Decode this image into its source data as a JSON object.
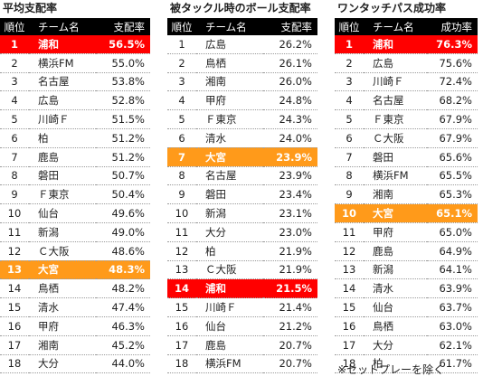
{
  "colors": {
    "highlight_red": "#ff0000",
    "highlight_orange": "#ff9a1a",
    "header_bg": "#000000"
  },
  "tables": [
    {
      "title": "平均支配率",
      "headers": {
        "rank": "順位",
        "team": "チーム名",
        "value": "支配率"
      },
      "rows": [
        {
          "rank": "1",
          "team": "浦和",
          "value": "56.5%",
          "hl": "red"
        },
        {
          "rank": "2",
          "team": "横浜FM",
          "value": "55.0%",
          "hl": ""
        },
        {
          "rank": "3",
          "team": "名古屋",
          "value": "53.8%",
          "hl": ""
        },
        {
          "rank": "4",
          "team": "広島",
          "value": "52.8%",
          "hl": ""
        },
        {
          "rank": "5",
          "team": "川崎Ｆ",
          "value": "51.5%",
          "hl": ""
        },
        {
          "rank": "6",
          "team": "柏",
          "value": "51.2%",
          "hl": ""
        },
        {
          "rank": "7",
          "team": "鹿島",
          "value": "51.2%",
          "hl": ""
        },
        {
          "rank": "8",
          "team": "磐田",
          "value": "50.7%",
          "hl": ""
        },
        {
          "rank": "9",
          "team": "Ｆ東京",
          "value": "50.4%",
          "hl": ""
        },
        {
          "rank": "10",
          "team": "仙台",
          "value": "49.6%",
          "hl": ""
        },
        {
          "rank": "11",
          "team": "新潟",
          "value": "49.0%",
          "hl": ""
        },
        {
          "rank": "12",
          "team": "Ｃ大阪",
          "value": "48.6%",
          "hl": ""
        },
        {
          "rank": "13",
          "team": "大宮",
          "value": "48.3%",
          "hl": "orange"
        },
        {
          "rank": "14",
          "team": "鳥栖",
          "value": "48.2%",
          "hl": ""
        },
        {
          "rank": "15",
          "team": "清水",
          "value": "47.4%",
          "hl": ""
        },
        {
          "rank": "16",
          "team": "甲府",
          "value": "46.3%",
          "hl": ""
        },
        {
          "rank": "17",
          "team": "湘南",
          "value": "45.2%",
          "hl": ""
        },
        {
          "rank": "18",
          "team": "大分",
          "value": "44.0%",
          "hl": ""
        }
      ]
    },
    {
      "title": "被タックル時のボール支配率",
      "headers": {
        "rank": "順位",
        "team": "チーム名",
        "value": "支配率"
      },
      "rows": [
        {
          "rank": "1",
          "team": "広島",
          "value": "26.2%",
          "hl": ""
        },
        {
          "rank": "2",
          "team": "鳥栖",
          "value": "26.1%",
          "hl": ""
        },
        {
          "rank": "3",
          "team": "湘南",
          "value": "26.0%",
          "hl": ""
        },
        {
          "rank": "4",
          "team": "甲府",
          "value": "24.8%",
          "hl": ""
        },
        {
          "rank": "5",
          "team": "Ｆ東京",
          "value": "24.3%",
          "hl": ""
        },
        {
          "rank": "6",
          "team": "清水",
          "value": "24.0%",
          "hl": ""
        },
        {
          "rank": "7",
          "team": "大宮",
          "value": "23.9%",
          "hl": "orange"
        },
        {
          "rank": "8",
          "team": "名古屋",
          "value": "23.9%",
          "hl": ""
        },
        {
          "rank": "9",
          "team": "磐田",
          "value": "23.4%",
          "hl": ""
        },
        {
          "rank": "10",
          "team": "新潟",
          "value": "23.1%",
          "hl": ""
        },
        {
          "rank": "11",
          "team": "大分",
          "value": "23.0%",
          "hl": ""
        },
        {
          "rank": "12",
          "team": "柏",
          "value": "21.9%",
          "hl": ""
        },
        {
          "rank": "13",
          "team": "Ｃ大阪",
          "value": "21.9%",
          "hl": ""
        },
        {
          "rank": "14",
          "team": "浦和",
          "value": "21.5%",
          "hl": "red"
        },
        {
          "rank": "15",
          "team": "川崎Ｆ",
          "value": "21.4%",
          "hl": ""
        },
        {
          "rank": "16",
          "team": "仙台",
          "value": "21.2%",
          "hl": ""
        },
        {
          "rank": "17",
          "team": "鹿島",
          "value": "20.7%",
          "hl": ""
        },
        {
          "rank": "18",
          "team": "横浜FM",
          "value": "20.7%",
          "hl": ""
        }
      ]
    },
    {
      "title": "ワンタッチパス成功率",
      "headers": {
        "rank": "順位",
        "team": "チーム名",
        "value": "成功率"
      },
      "rows": [
        {
          "rank": "1",
          "team": "浦和",
          "value": "76.3%",
          "hl": "red"
        },
        {
          "rank": "2",
          "team": "広島",
          "value": "75.6%",
          "hl": ""
        },
        {
          "rank": "3",
          "team": "川崎Ｆ",
          "value": "72.4%",
          "hl": ""
        },
        {
          "rank": "4",
          "team": "名古屋",
          "value": "68.2%",
          "hl": ""
        },
        {
          "rank": "5",
          "team": "Ｆ東京",
          "value": "67.9%",
          "hl": ""
        },
        {
          "rank": "6",
          "team": "Ｃ大阪",
          "value": "67.9%",
          "hl": ""
        },
        {
          "rank": "7",
          "team": "磐田",
          "value": "65.6%",
          "hl": ""
        },
        {
          "rank": "8",
          "team": "横浜FM",
          "value": "65.5%",
          "hl": ""
        },
        {
          "rank": "9",
          "team": "湘南",
          "value": "65.3%",
          "hl": ""
        },
        {
          "rank": "10",
          "team": "大宮",
          "value": "65.1%",
          "hl": "orange"
        },
        {
          "rank": "11",
          "team": "甲府",
          "value": "65.0%",
          "hl": ""
        },
        {
          "rank": "12",
          "team": "鹿島",
          "value": "64.9%",
          "hl": ""
        },
        {
          "rank": "13",
          "team": "新潟",
          "value": "64.1%",
          "hl": ""
        },
        {
          "rank": "14",
          "team": "清水",
          "value": "63.9%",
          "hl": ""
        },
        {
          "rank": "15",
          "team": "仙台",
          "value": "63.7%",
          "hl": ""
        },
        {
          "rank": "16",
          "team": "鳥栖",
          "value": "63.0%",
          "hl": ""
        },
        {
          "rank": "17",
          "team": "大分",
          "value": "62.1%",
          "hl": ""
        },
        {
          "rank": "18",
          "team": "柏",
          "value": "61.7%",
          "hl": ""
        }
      ]
    }
  ],
  "note": "※セットプレーを除く"
}
